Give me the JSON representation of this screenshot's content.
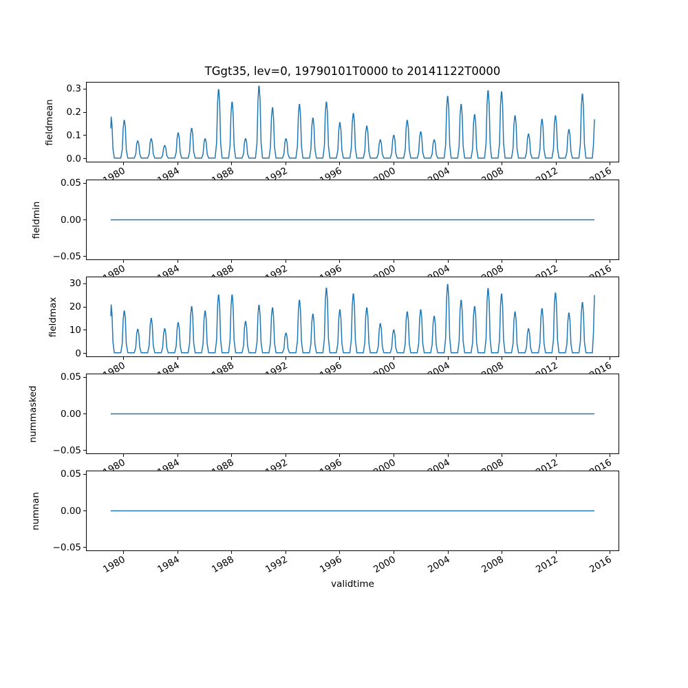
{
  "figure": {
    "title": "TGgt35, lev=0, 19790101T0000 to 20141122T0000",
    "line_color": "#1f77b4",
    "axis_color": "#000000",
    "background": "#ffffff"
  },
  "x_axis": {
    "label": "validtime",
    "xlim": [
      1977.21,
      2016.68
    ],
    "data_start": 1979.0,
    "data_end": 2014.89,
    "tick_years": [
      1980,
      1984,
      1988,
      1992,
      1996,
      2000,
      2004,
      2008,
      2012,
      2016
    ],
    "tick_labels": [
      "1980",
      "1984",
      "1988",
      "1992",
      "1996",
      "2000",
      "2004",
      "2008",
      "2012",
      "2016"
    ],
    "tick_label_rotation_deg": 30
  },
  "chart_data": [
    {
      "type": "line",
      "ylabel": "fieldmean",
      "series_kind": "annual_spikes",
      "start_value": 0.13,
      "end_value": 0.17,
      "peak_years": [
        1979,
        1980,
        1981,
        1982,
        1983,
        1984,
        1985,
        1986,
        1987,
        1988,
        1989,
        1990,
        1991,
        1992,
        1993,
        1994,
        1995,
        1996,
        1997,
        1998,
        1999,
        2000,
        2001,
        2002,
        2003,
        2004,
        2005,
        2006,
        2007,
        2008,
        2009,
        2010,
        2011,
        2012,
        2013,
        2014
      ],
      "annual_peaks": [
        0.18,
        0.165,
        0.075,
        0.085,
        0.055,
        0.11,
        0.13,
        0.085,
        0.3,
        0.245,
        0.085,
        0.315,
        0.22,
        0.085,
        0.235,
        0.175,
        0.245,
        0.155,
        0.195,
        0.14,
        0.08,
        0.1,
        0.165,
        0.115,
        0.08,
        0.27,
        0.235,
        0.19,
        0.295,
        0.29,
        0.185,
        0.105,
        0.17,
        0.185,
        0.125,
        0.28
      ],
      "baseline": 0.0,
      "ylim": [
        -0.01575,
        0.33075
      ],
      "yticks": [
        0.0,
        0.1,
        0.2,
        0.3
      ],
      "ytick_labels": [
        "0.0",
        "0.1",
        "0.2",
        "0.3"
      ]
    },
    {
      "type": "line",
      "ylabel": "fieldmin",
      "series_kind": "constant",
      "value": 0.0,
      "ylim": [
        -0.055,
        0.055
      ],
      "yticks": [
        0.05,
        0.0,
        -0.05
      ],
      "ytick_labels": [
        "0.05",
        "0.00",
        "−0.05"
      ]
    },
    {
      "type": "line",
      "ylabel": "fieldmax",
      "series_kind": "annual_spikes",
      "start_value": 16,
      "end_value": 25.3,
      "peak_years": [
        1979,
        1980,
        1981,
        1982,
        1983,
        1984,
        1985,
        1986,
        1987,
        1988,
        1989,
        1990,
        1991,
        1992,
        1993,
        1994,
        1995,
        1996,
        1997,
        1998,
        1999,
        2000,
        2001,
        2002,
        2003,
        2004,
        2005,
        2006,
        2007,
        2008,
        2009,
        2010,
        2011,
        2012,
        2013,
        2014
      ],
      "annual_peaks": [
        21,
        18.3,
        10.3,
        15.1,
        10.5,
        13.2,
        20.2,
        18.3,
        25.3,
        25.3,
        13.7,
        20.8,
        19.7,
        8.6,
        23.0,
        16.9,
        28.3,
        18.8,
        25.8,
        19.7,
        12.8,
        10.0,
        17.9,
        18.8,
        16.0,
        29.9,
        23.0,
        20.2,
        28.1,
        25.7,
        17.9,
        10.5,
        19.3,
        26.2,
        17.4,
        22.0
      ],
      "baseline": 0.0,
      "ylim": [
        -1.575,
        33.075
      ],
      "yticks": [
        0,
        10,
        20,
        30
      ],
      "ytick_labels": [
        "0",
        "10",
        "20",
        "30"
      ]
    },
    {
      "type": "line",
      "ylabel": "nummasked",
      "series_kind": "constant",
      "value": 0.0,
      "ylim": [
        -0.055,
        0.055
      ],
      "yticks": [
        0.05,
        0.0,
        -0.05
      ],
      "ytick_labels": [
        "0.05",
        "0.00",
        "−0.05"
      ]
    },
    {
      "type": "line",
      "ylabel": "numnan",
      "series_kind": "constant",
      "value": 0.0,
      "ylim": [
        -0.055,
        0.055
      ],
      "yticks": [
        0.05,
        0.0,
        -0.05
      ],
      "ytick_labels": [
        "0.05",
        "0.00",
        "−0.05"
      ]
    }
  ]
}
